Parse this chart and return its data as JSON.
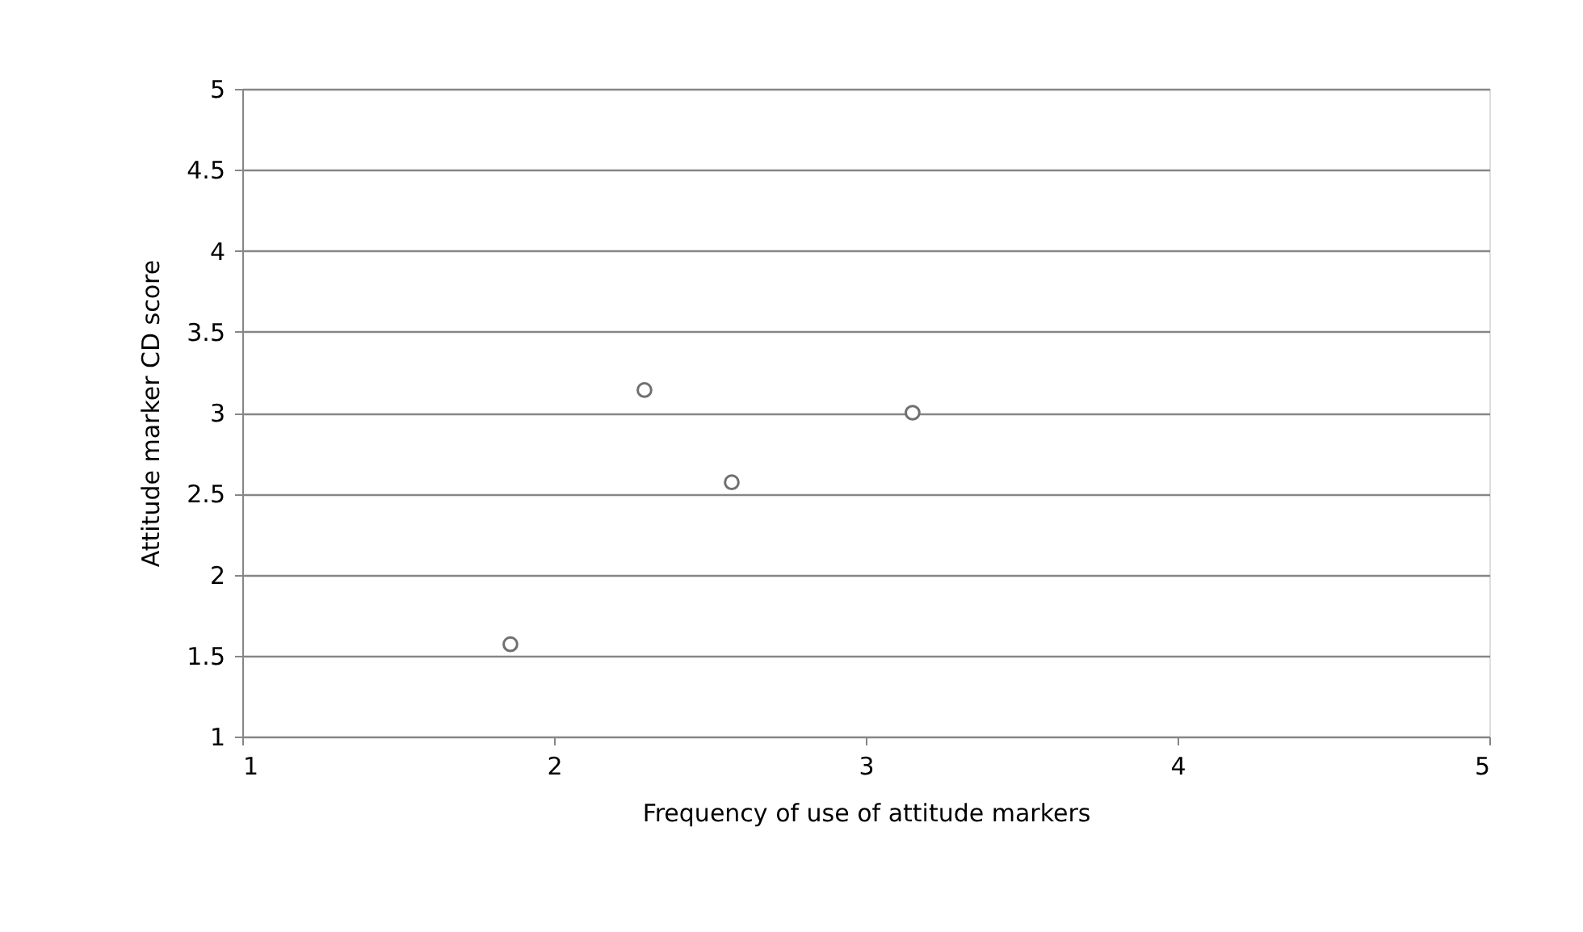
{
  "chart_data": {
    "type": "scatter",
    "xlabel": "Frequency of use of attitude markers",
    "ylabel": "Attitude marker CD score",
    "x": [
      1.86,
      2.29,
      2.57,
      3.15
    ],
    "values": [
      1.57,
      3.14,
      2.57,
      3.0
    ],
    "color": "#ffffff",
    "xlim": [
      1,
      5
    ],
    "xticks": [
      1,
      2,
      3,
      4,
      5
    ],
    "ylim": [
      1,
      5
    ],
    "yticks": [
      1,
      1.5,
      2,
      2.5,
      3,
      3.5,
      4,
      4.5,
      5
    ],
    "grid": "y",
    "marker": "circle"
  }
}
